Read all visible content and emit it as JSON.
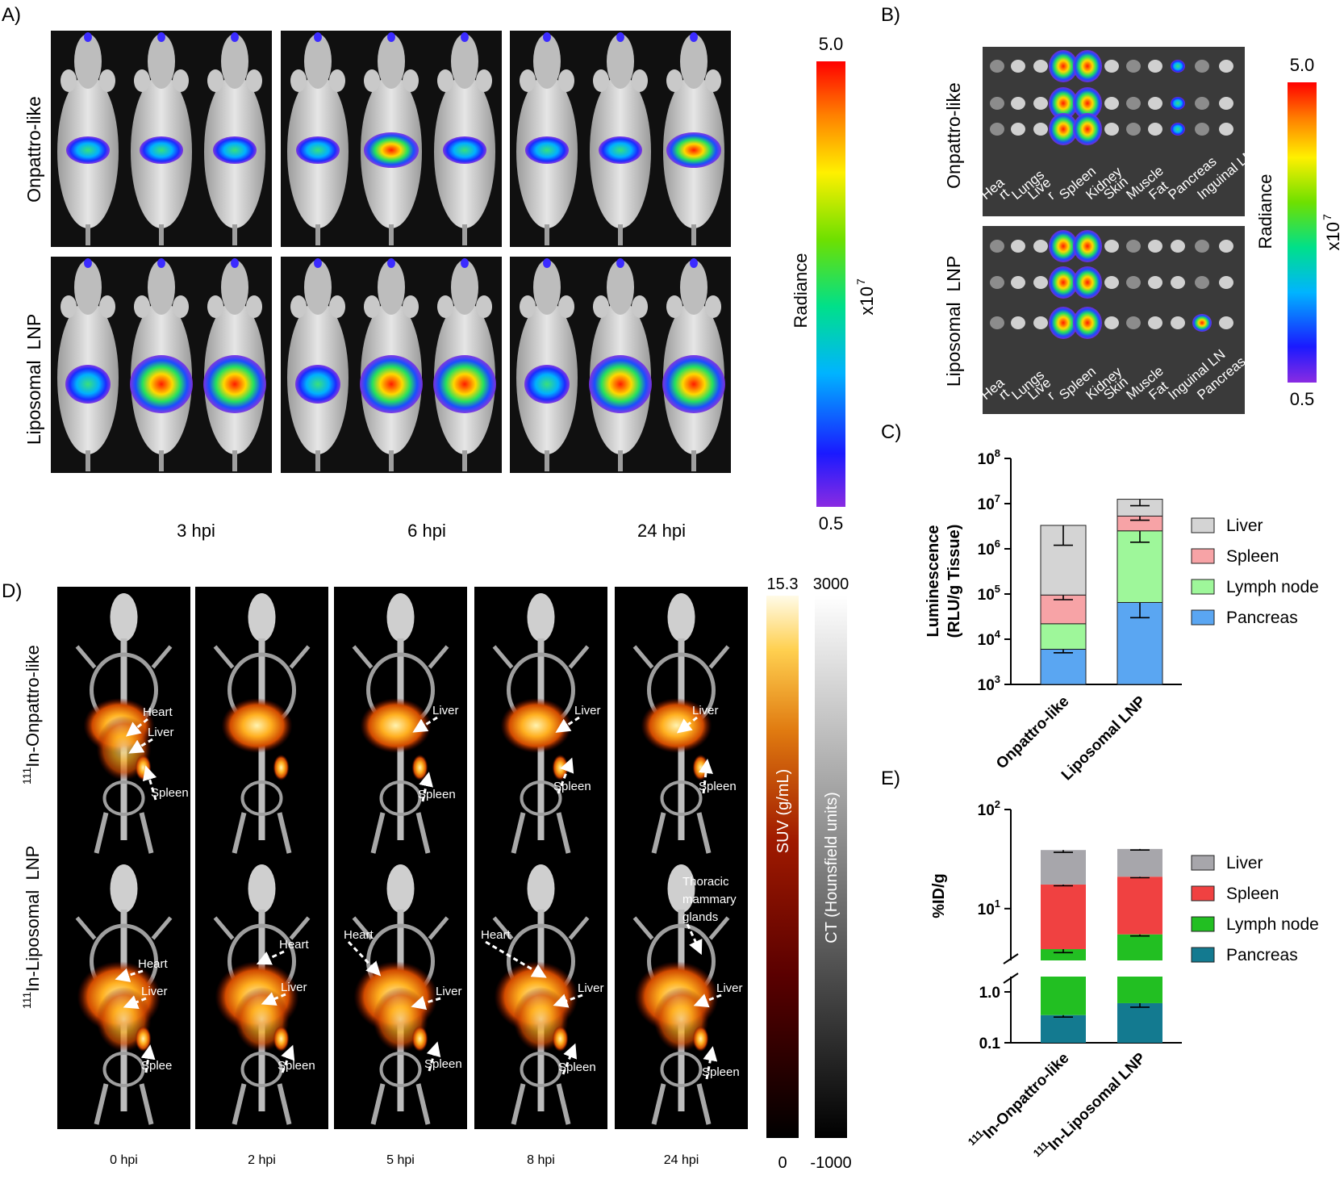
{
  "panel_letters": {
    "a": "A)",
    "b": "B)",
    "c": "C)",
    "d": "D)",
    "e": "E)"
  },
  "colors": {
    "image_bg": "#101010",
    "tissue_bg": "#3a3a3a",
    "liver_c": "#d4d4d4",
    "spleen_c": "#f7a3a6",
    "lymph_c": "#9ef79a",
    "pancreas_c": "#5aa6f2",
    "liver_e": "#a7a6ab",
    "spleen_e": "#f04141",
    "lymph_e": "#22bf22",
    "pancreas_e": "#137a90"
  },
  "panel_a": {
    "row_labels": [
      "Onpattro-like",
      "Liposomal  LNP"
    ],
    "time_labels": [
      "3 hpi",
      "6 hpi",
      "24 hpi"
    ],
    "colorbar": {
      "max": "5.0",
      "min": "0.5",
      "title": "Radiance",
      "unit": "x10",
      "unit_exp": "7"
    }
  },
  "panel_b": {
    "row_labels": [
      "Onpattro-like",
      "Liposomal  LNP"
    ],
    "organs_top": [
      "Hea",
      "rt",
      "Lungs",
      "Live",
      "r",
      "Spleen",
      "Kidney",
      "Skin",
      "Muscle",
      "Fat",
      "Pancreas",
      "Inguinal LN"
    ],
    "organs_bottom": [
      "Hea",
      "rt",
      "Lungs",
      "Live",
      "r",
      "Spleen",
      "Kidney",
      "Skin",
      "Muscle",
      "Fat",
      "Inguinal LN",
      "Pancreas"
    ],
    "colorbar": {
      "max": "5.0",
      "min": "0.5",
      "title": "Radiance",
      "unit": "x10",
      "unit_exp": "7"
    }
  },
  "panel_d": {
    "row_labels": {
      "top_sup": "111",
      "top": "In-Onpattro-like",
      "bottom_sup": "111",
      "bottom": "In-Liposomal  LNP"
    },
    "time_labels": [
      "0 hpi",
      "2 hpi",
      "5 hpi",
      "8 hpi",
      "24 hpi"
    ],
    "annotations": {
      "r0c0": [
        "Heart",
        "Liver",
        "Spleen"
      ],
      "r0c2": [
        "Liver",
        "Spleen"
      ],
      "r0c3": [
        "Liver",
        "Spleen"
      ],
      "r0c4": [
        "Liver",
        "Spleen"
      ],
      "r1c0": [
        "Heart",
        "Liver",
        "Splee"
      ],
      "r1c1": [
        "Heart",
        "Liver",
        "Spleen"
      ],
      "r1c2": [
        "Heart",
        "Liver",
        "Spleen"
      ],
      "r1c3": [
        "Heart",
        "Liver",
        "Spleen"
      ],
      "r1c4": [
        "Thoracic",
        "mammary",
        "glands",
        "Liver",
        "Spleen"
      ]
    },
    "suv_bar": {
      "max": "15.3",
      "min": "0",
      "title": "SUV (g/mL)"
    },
    "ct_bar": {
      "max": "3000",
      "min": "-1000",
      "title": "CT (Hounsfield units)"
    }
  },
  "chart_data": [
    {
      "panel": "C",
      "type": "bar",
      "stacked": true,
      "yscale": "log",
      "categories": [
        "Onpattro-like",
        "Liposomal LNP"
      ],
      "ylabel_line1": "Luminescence",
      "ylabel_line2": "(RLU/g Tissue)",
      "ylim": [
        1000,
        100000000
      ],
      "ytick_base": "10",
      "ytick_exponents": [
        "3",
        "4",
        "5",
        "6",
        "7",
        "8"
      ],
      "series": [
        {
          "name": "Pancreas",
          "values": [
            6000,
            65000
          ],
          "err": [
            5000,
            30000
          ]
        },
        {
          "name": "Lymph node",
          "values": [
            22000,
            2500000
          ],
          "err": [
            null,
            1400000
          ]
        },
        {
          "name": "Spleen",
          "values": [
            95000,
            5300000
          ],
          "err": [
            75000,
            4300000
          ]
        },
        {
          "name": "Liver",
          "values": [
            3300000,
            12500000
          ],
          "err": [
            1200000,
            9000000
          ]
        }
      ],
      "legend": [
        "Liver",
        "Spleen",
        "Lymph node",
        "Pancreas"
      ]
    },
    {
      "panel": "E",
      "type": "bar",
      "stacked": true,
      "yscale": "log",
      "broken_axis": true,
      "categories_sup": [
        "111",
        "111"
      ],
      "categories": [
        "In-Onpattro-like",
        "In-Liposomal LNP"
      ],
      "ylabel": "%ID/g",
      "ylim_upper": [
        3,
        100
      ],
      "ylim_lower": [
        0.1,
        2
      ],
      "ytick_labels_lower": [
        "0.1",
        "1.0"
      ],
      "ytick_base": "10",
      "ytick_exponents": [
        "1",
        "2"
      ],
      "series": [
        {
          "name": "Pancreas",
          "values": [
            0.35,
            0.6
          ],
          "err": [
            0.32,
            0.5
          ]
        },
        {
          "name": "Lymph node",
          "values": [
            3.9,
            5.5
          ],
          "err": [
            3.6,
            5.3
          ]
        },
        {
          "name": "Spleen",
          "values": [
            17.5,
            21
          ],
          "err": [
            17,
            20.5
          ]
        },
        {
          "name": "Liver",
          "values": [
            39,
            40
          ],
          "err": [
            37,
            39
          ]
        }
      ],
      "legend": [
        "Liver",
        "Spleen",
        "Lymph node",
        "Pancreas"
      ]
    }
  ]
}
